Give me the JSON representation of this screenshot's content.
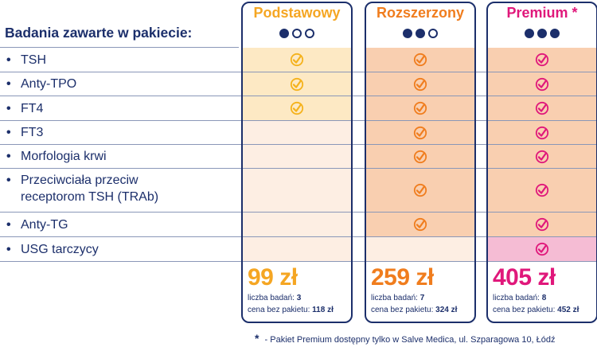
{
  "heading": "Badania zawarte w pakiecie:",
  "rows": [
    {
      "bullet": "•",
      "label": "TSH",
      "included": [
        true,
        true,
        true
      ]
    },
    {
      "bullet": "•",
      "label": "Anty-TPO",
      "included": [
        true,
        true,
        true
      ]
    },
    {
      "bullet": "•",
      "label": "FT4",
      "included": [
        true,
        true,
        true
      ]
    },
    {
      "bullet": "•",
      "label": "FT3",
      "included": [
        false,
        true,
        true
      ]
    },
    {
      "bullet": "•",
      "label": "Morfologia krwi",
      "included": [
        false,
        true,
        true
      ]
    },
    {
      "bullet": "•",
      "label_line1": "Przeciwciała przeciw",
      "label_line2": "receptorom TSH (TRAb)",
      "included": [
        false,
        true,
        true
      ]
    },
    {
      "bullet": "•",
      "label": "Anty-TG",
      "included": [
        false,
        true,
        true
      ]
    },
    {
      "bullet": "•",
      "label": "USG tarczycy",
      "included": [
        false,
        false,
        true
      ]
    }
  ],
  "packages": [
    {
      "name": "Podstawowy",
      "level": 1,
      "price": "99 zł",
      "tests_label": "liczba badań:",
      "tests_count": "3",
      "value_label": "cena bez pakietu:",
      "value": "118 zł",
      "accent": "#f5a623"
    },
    {
      "name": "Rozszerzony",
      "level": 2,
      "price": "259 zł",
      "tests_label": "liczba badań:",
      "tests_count": "7",
      "value_label": "cena bez pakietu:",
      "value": "324 zł",
      "accent": "#f07d1e"
    },
    {
      "name": "Premium *",
      "level": 3,
      "price": "405 zł",
      "tests_label": "liczba badań:",
      "tests_count": "8",
      "value_label": "cena bez pakietu:",
      "value": "452 zł",
      "accent": "#e0187b"
    }
  ],
  "colors": {
    "navy": "#1c2f6b",
    "light_yellow": "#fde9c4",
    "light_peach": "#fdeee3",
    "peach": "#f9cfb0",
    "pink": "#f5bcd4",
    "check_yellow": "#f5b21b",
    "check_orange": "#f07d1e",
    "check_pink": "#e0187b"
  },
  "footnote": {
    "star": "*",
    "text": "- Pakiet Premium dostępny tylko w Salve Medica, ul. Szparagowa 10, Łódź"
  }
}
